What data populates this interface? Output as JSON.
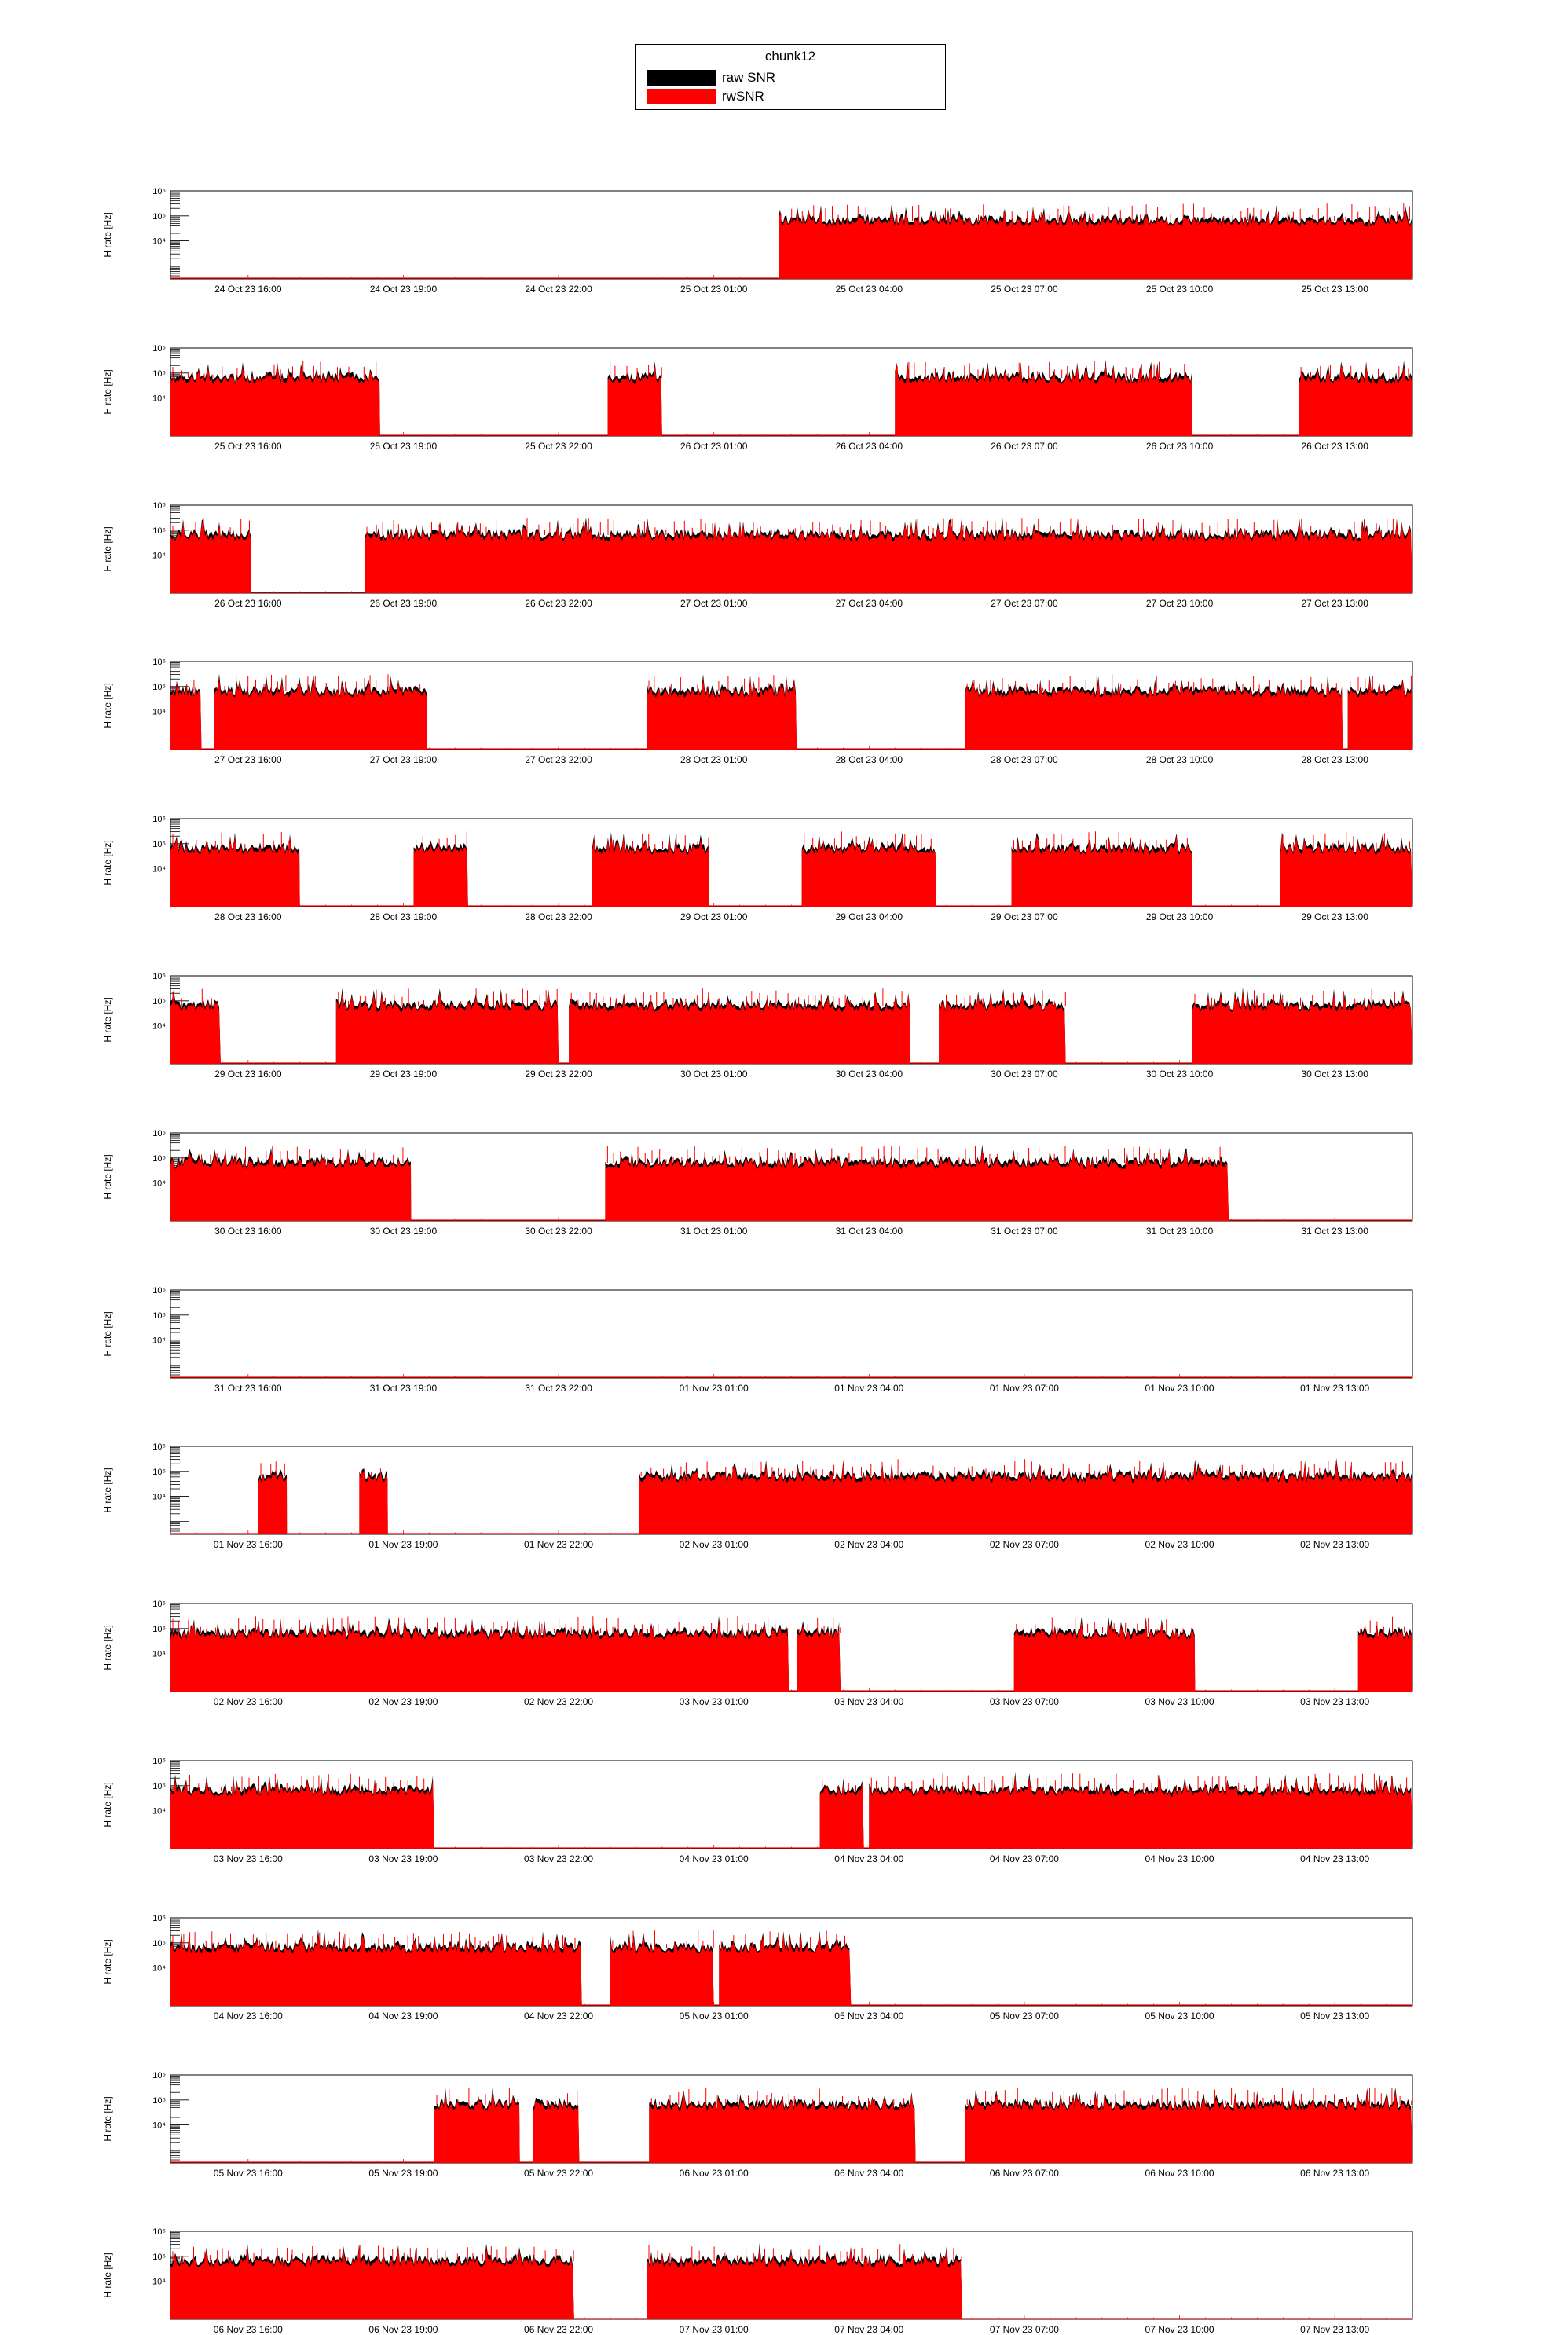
{
  "legend": {
    "title": "chunk12",
    "entries": [
      {
        "label": "raw SNR",
        "color": "#000000"
      },
      {
        "label": "rwSNR",
        "color": "#ff0000"
      }
    ]
  },
  "chart_data": {
    "type": "bar",
    "ylabel": "H rate [Hz]",
    "yscale": "log",
    "ylim": [
      300,
      1000000
    ],
    "ytick_labels": [
      "10⁴",
      "10⁵",
      "10⁶"
    ],
    "typical_rate_hz": {
      "rwSNR": 55000,
      "raw SNR": 60000
    },
    "series": [
      {
        "name": "raw SNR",
        "color": "#000000"
      },
      {
        "name": "rwSNR",
        "color": "#ff0000"
      }
    ],
    "window_hours": 24,
    "tick_hours": [
      1.5,
      4.5,
      7.5,
      10.5,
      13.5,
      16.5,
      19.5,
      22.5
    ],
    "panels": [
      {
        "ticks": [
          "24 Oct 23 16:00",
          "24 Oct 23 19:00",
          "24 Oct 23 22:00",
          "25 Oct 23 01:00",
          "25 Oct 23 04:00",
          "25 Oct 23 07:00",
          "25 Oct 23 10:00",
          "25 Oct 23 13:00"
        ],
        "segments_hours": [
          [
            11.75,
            24.0
          ]
        ]
      },
      {
        "ticks": [
          "25 Oct 23 16:00",
          "25 Oct 23 19:00",
          "25 Oct 23 22:00",
          "26 Oct 23 01:00",
          "26 Oct 23 04:00",
          "26 Oct 23 07:00",
          "26 Oct 23 10:00",
          "26 Oct 23 13:00"
        ],
        "segments_hours": [
          [
            0.0,
            4.05
          ],
          [
            8.45,
            9.5
          ],
          [
            14.0,
            19.75
          ],
          [
            21.8,
            24.0
          ]
        ]
      },
      {
        "ticks": [
          "26 Oct 23 16:00",
          "26 Oct 23 19:00",
          "26 Oct 23 22:00",
          "27 Oct 23 01:00",
          "27 Oct 23 04:00",
          "27 Oct 23 07:00",
          "27 Oct 23 10:00",
          "27 Oct 23 13:00"
        ],
        "segments_hours": [
          [
            0.0,
            1.55
          ],
          [
            3.75,
            24.0
          ]
        ]
      },
      {
        "ticks": [
          "27 Oct 23 16:00",
          "27 Oct 23 19:00",
          "27 Oct 23 22:00",
          "28 Oct 23 01:00",
          "28 Oct 23 04:00",
          "28 Oct 23 07:00",
          "28 Oct 23 10:00",
          "28 Oct 23 13:00"
        ],
        "segments_hours": [
          [
            0.0,
            0.6
          ],
          [
            0.85,
            4.95
          ],
          [
            9.2,
            12.1
          ],
          [
            15.35,
            22.65
          ],
          [
            22.75,
            24.0
          ]
        ]
      },
      {
        "ticks": [
          "28 Oct 23 16:00",
          "28 Oct 23 19:00",
          "28 Oct 23 22:00",
          "29 Oct 23 01:00",
          "29 Oct 23 04:00",
          "29 Oct 23 07:00",
          "29 Oct 23 10:00",
          "29 Oct 23 13:00"
        ],
        "segments_hours": [
          [
            0.0,
            2.5
          ],
          [
            4.7,
            5.75
          ],
          [
            8.15,
            10.4
          ],
          [
            12.2,
            14.8
          ],
          [
            16.25,
            19.75
          ],
          [
            21.45,
            24.0
          ]
        ]
      },
      {
        "ticks": [
          "29 Oct 23 16:00",
          "29 Oct 23 19:00",
          "29 Oct 23 22:00",
          "30 Oct 23 01:00",
          "30 Oct 23 04:00",
          "30 Oct 23 07:00",
          "30 Oct 23 10:00",
          "30 Oct 23 13:00"
        ],
        "segments_hours": [
          [
            0.0,
            0.97
          ],
          [
            3.2,
            7.5
          ],
          [
            7.7,
            14.3
          ],
          [
            14.85,
            17.3
          ],
          [
            19.75,
            24.0
          ]
        ]
      },
      {
        "ticks": [
          "30 Oct 23 16:00",
          "30 Oct 23 19:00",
          "30 Oct 23 22:00",
          "31 Oct 23 01:00",
          "31 Oct 23 04:00",
          "31 Oct 23 07:00",
          "31 Oct 23 10:00",
          "31 Oct 23 13:00"
        ],
        "segments_hours": [
          [
            0.0,
            4.65
          ],
          [
            8.4,
            20.45
          ]
        ]
      },
      {
        "ticks": [
          "31 Oct 23 16:00",
          "31 Oct 23 19:00",
          "31 Oct 23 22:00",
          "01 Nov 23 01:00",
          "01 Nov 23 04:00",
          "01 Nov 23 07:00",
          "01 Nov 23 10:00",
          "01 Nov 23 13:00"
        ],
        "segments_hours": []
      },
      {
        "ticks": [
          "01 Nov 23 16:00",
          "01 Nov 23 19:00",
          "01 Nov 23 22:00",
          "02 Nov 23 01:00",
          "02 Nov 23 04:00",
          "02 Nov 23 07:00",
          "02 Nov 23 10:00",
          "02 Nov 23 13:00"
        ],
        "segments_hours": [
          [
            1.7,
            2.25
          ],
          [
            3.65,
            4.2
          ],
          [
            9.05,
            24.0
          ]
        ]
      },
      {
        "ticks": [
          "02 Nov 23 16:00",
          "02 Nov 23 19:00",
          "02 Nov 23 22:00",
          "03 Nov 23 01:00",
          "03 Nov 23 04:00",
          "03 Nov 23 07:00",
          "03 Nov 23 10:00",
          "03 Nov 23 13:00"
        ],
        "segments_hours": [
          [
            0.0,
            11.95
          ],
          [
            12.1,
            12.95
          ],
          [
            16.3,
            19.8
          ],
          [
            22.95,
            24.0
          ]
        ]
      },
      {
        "ticks": [
          "03 Nov 23 16:00",
          "03 Nov 23 19:00",
          "03 Nov 23 22:00",
          "04 Nov 23 01:00",
          "04 Nov 23 04:00",
          "04 Nov 23 07:00",
          "04 Nov 23 10:00",
          "04 Nov 23 13:00"
        ],
        "segments_hours": [
          [
            0.0,
            5.1
          ],
          [
            12.55,
            13.4
          ],
          [
            13.5,
            24.0
          ]
        ]
      },
      {
        "ticks": [
          "04 Nov 23 16:00",
          "04 Nov 23 19:00",
          "04 Nov 23 22:00",
          "05 Nov 23 01:00",
          "05 Nov 23 04:00",
          "05 Nov 23 07:00",
          "05 Nov 23 10:00",
          "05 Nov 23 13:00"
        ],
        "segments_hours": [
          [
            0.0,
            7.95
          ],
          [
            8.5,
            10.5
          ],
          [
            10.6,
            13.15
          ]
        ]
      },
      {
        "ticks": [
          "05 Nov 23 16:00",
          "05 Nov 23 19:00",
          "05 Nov 23 22:00",
          "06 Nov 23 01:00",
          "06 Nov 23 04:00",
          "06 Nov 23 07:00",
          "06 Nov 23 10:00",
          "06 Nov 23 13:00"
        ],
        "segments_hours": [
          [
            5.1,
            6.75
          ],
          [
            7.0,
            7.9
          ],
          [
            9.25,
            14.4
          ],
          [
            15.35,
            24.0
          ]
        ]
      },
      {
        "ticks": [
          "06 Nov 23 16:00",
          "06 Nov 23 19:00",
          "06 Nov 23 22:00",
          "07 Nov 23 01:00",
          "07 Nov 23 04:00",
          "07 Nov 23 07:00",
          "07 Nov 23 10:00",
          "07 Nov 23 13:00"
        ],
        "segments_hours": [
          [
            0.0,
            7.8
          ],
          [
            9.2,
            15.3
          ]
        ]
      }
    ]
  }
}
